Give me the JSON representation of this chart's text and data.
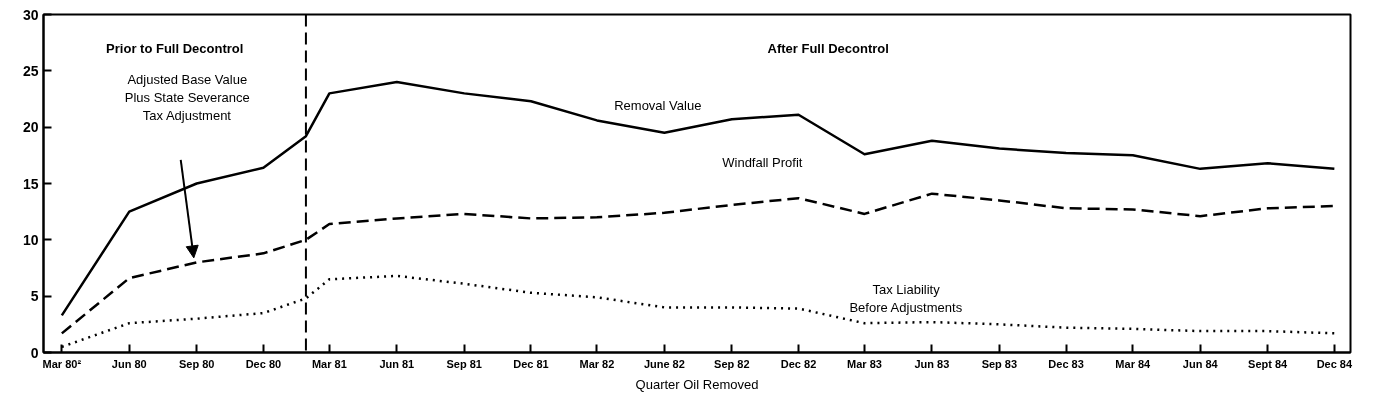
{
  "chart_data": {
    "type": "line",
    "xlabel": "Quarter Oil Removed",
    "xlim": [
      "1980-02-05",
      "1984-12-23"
    ],
    "xticks": [
      {
        "value": "1980-03",
        "label": "Mar 80²"
      },
      {
        "value": "1980-06",
        "label": "Jun 80"
      },
      {
        "value": "1980-09",
        "label": "Sep 80"
      },
      {
        "value": "1980-12",
        "label": "Dec 80"
      },
      {
        "value": "1981-03",
        "label": "Mar 81"
      },
      {
        "value": "1981-06",
        "label": "Jun 81"
      },
      {
        "value": "1981-09",
        "label": "Sep 81"
      },
      {
        "value": "1981-12",
        "label": "Dec 81"
      },
      {
        "value": "1982-03",
        "label": "Mar 82"
      },
      {
        "value": "1982-06",
        "label": "June 82"
      },
      {
        "value": "1982-09",
        "label": "Sep 82"
      },
      {
        "value": "1982-12",
        "label": "Dec 82"
      },
      {
        "value": "1983-03",
        "label": "Mar 83"
      },
      {
        "value": "1983-06",
        "label": "Jun 83"
      },
      {
        "value": "1983-09",
        "label": "Sep 83"
      },
      {
        "value": "1983-12",
        "label": "Dec 83"
      },
      {
        "value": "1984-03",
        "label": "Mar 84"
      },
      {
        "value": "1984-06",
        "label": "Jun 84"
      },
      {
        "value": "1984-09",
        "label": "Sept 84"
      },
      {
        "value": "1984-12",
        "label": "Dec 84"
      }
    ],
    "ylim": [
      0,
      30
    ],
    "yticks": [
      0,
      5,
      10,
      15,
      20,
      25,
      30
    ],
    "x": [
      "1980-03",
      "1980-06",
      "1980-09",
      "1980-12",
      "1981-01-28",
      "1981-03",
      "1981-06",
      "1981-09",
      "1981-12",
      "1982-03",
      "1982-06",
      "1982-09",
      "1982-12",
      "1983-03",
      "1983-06",
      "1983-09",
      "1983-12",
      "1984-03",
      "1984-06",
      "1984-09",
      "1984-12"
    ],
    "series": [
      {
        "name": "Removal Value",
        "color": "#000000",
        "line_style": "solid",
        "values": [
          3.3,
          12.5,
          15.0,
          16.4,
          19.2,
          23.0,
          24.0,
          23.0,
          22.3,
          20.6,
          19.5,
          20.7,
          21.1,
          17.6,
          18.8,
          18.1,
          17.7,
          17.5,
          16.3,
          16.8,
          16.3
        ]
      },
      {
        "name": "Windfall Profit",
        "color": "#000000",
        "line_style": "dashed",
        "values": [
          1.7,
          6.6,
          8.0,
          8.8,
          10.0,
          11.4,
          11.9,
          12.3,
          11.9,
          12.0,
          12.4,
          13.1,
          13.7,
          12.3,
          14.1,
          13.5,
          12.8,
          12.7,
          12.1,
          12.8,
          13.0
        ]
      },
      {
        "name": "Tax Liability\nBefore Adjustments",
        "color": "#000000",
        "line_style": "dotted",
        "values": [
          0.5,
          2.6,
          3.0,
          3.5,
          4.8,
          6.5,
          6.8,
          6.1,
          5.3,
          4.9,
          4.0,
          4.0,
          3.9,
          2.6,
          2.7,
          2.5,
          2.2,
          2.1,
          1.9,
          1.9,
          1.7
        ]
      }
    ],
    "ref_lines": [
      {
        "axis": "x",
        "value": "1981-01-28",
        "color": "#000000",
        "line_style": "dashed"
      }
    ],
    "annotations": [
      "Prior to Full Decontrol",
      "After Full Decontrol",
      "Adjusted Base Value\nPlus State Severance\nTax Adjustment"
    ],
    "grid": false
  }
}
